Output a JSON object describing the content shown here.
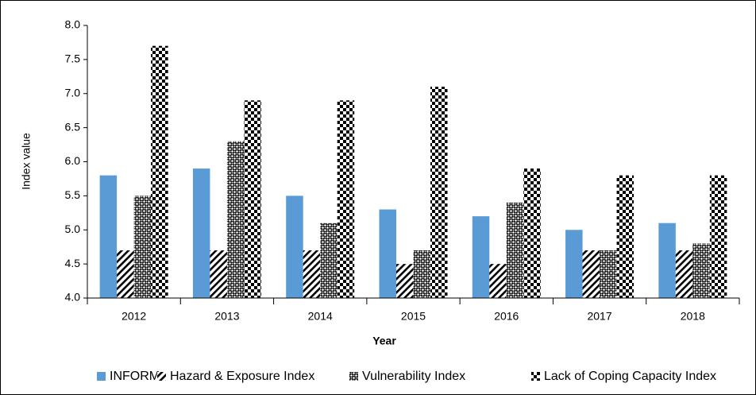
{
  "chart_data": {
    "type": "bar",
    "xlabel": "Year",
    "ylabel": "Index value",
    "categories": [
      "2012",
      "2013",
      "2014",
      "2015",
      "2016",
      "2017",
      "2018"
    ],
    "series": [
      {
        "name": "INFORM",
        "color": "#5b9bd5",
        "pattern": "solid",
        "values": [
          5.8,
          5.9,
          5.5,
          5.3,
          5.2,
          5.0,
          5.1
        ]
      },
      {
        "name": "Hazard & Exposure Index",
        "color": "#000000",
        "pattern": "diagonal",
        "values": [
          4.7,
          4.7,
          4.7,
          4.5,
          4.5,
          4.7,
          4.7
        ]
      },
      {
        "name": "Vulnerability Index",
        "color": "#000000",
        "pattern": "dots",
        "values": [
          5.5,
          6.3,
          5.1,
          4.7,
          5.4,
          4.7,
          4.8
        ]
      },
      {
        "name": "Lack of Coping Capacity Index",
        "color": "#000000",
        "pattern": "checker",
        "values": [
          7.7,
          6.9,
          6.9,
          7.1,
          5.9,
          5.8,
          5.8
        ]
      }
    ],
    "ylim": [
      4,
      8
    ],
    "yticks": [
      {
        "value": 4,
        "label": "4.0"
      },
      {
        "value": 4.5,
        "label": "4.5"
      },
      {
        "value": 5,
        "label": "5.0"
      },
      {
        "value": 5.5,
        "label": "5.5"
      },
      {
        "value": 6,
        "label": "6.0"
      },
      {
        "value": 6.5,
        "label": "6.5"
      },
      {
        "value": 7,
        "label": "7.0"
      },
      {
        "value": 7.5,
        "label": "7.5"
      },
      {
        "value": 8,
        "label": "8.0"
      }
    ],
    "grid": false,
    "legend": "bottom"
  }
}
